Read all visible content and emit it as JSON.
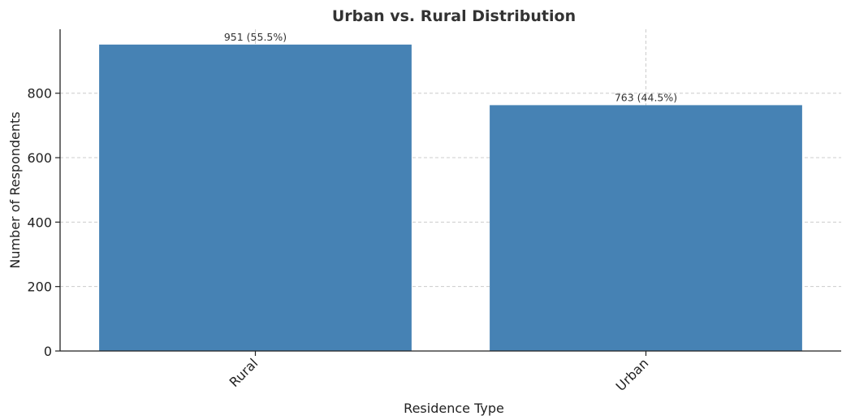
{
  "chart_data": {
    "type": "bar",
    "title": "Urban vs. Rural Distribution",
    "xlabel": "Residence Type",
    "ylabel": "Number of Respondents",
    "categories": [
      "Rural",
      "Urban"
    ],
    "values": [
      951,
      763
    ],
    "data_labels": [
      "951 (55.5%)",
      "763 (44.5%)"
    ],
    "ylim": [
      0,
      998.55
    ],
    "yticks": [
      0,
      200,
      400,
      600,
      800
    ],
    "ytick_labels": [
      "0",
      "200",
      "400",
      "600",
      "800"
    ],
    "grid": true,
    "legend": "none",
    "bar_color": "#4682b4",
    "x_tick_rotation": 45
  }
}
